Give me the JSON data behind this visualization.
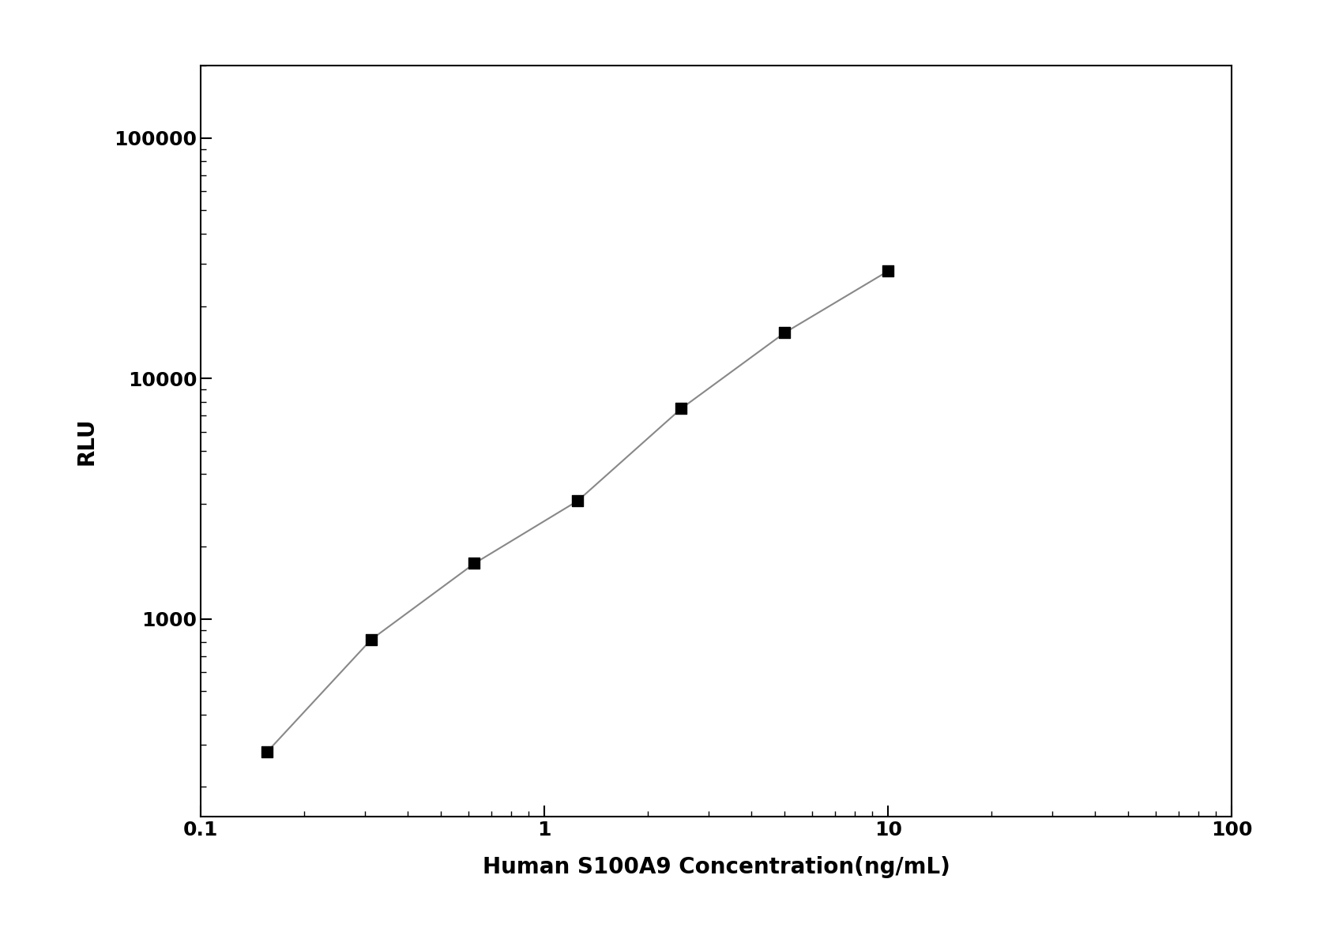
{
  "x": [
    0.156,
    0.313,
    0.625,
    1.25,
    2.5,
    5.0,
    10.0
  ],
  "y": [
    280,
    820,
    1700,
    3100,
    7500,
    15500,
    28000
  ],
  "xlabel": "Human S100A9 Concentration(ng/mL)",
  "ylabel": "RLU",
  "xlim": [
    0.1,
    100
  ],
  "ylim": [
    150,
    200000
  ],
  "line_color": "#888888",
  "marker_color": "#000000",
  "marker_size": 10,
  "line_width": 1.5,
  "background_color": "#ffffff",
  "xlabel_fontsize": 20,
  "ylabel_fontsize": 20,
  "tick_fontsize": 18,
  "xticks": [
    0.1,
    1,
    10,
    100
  ],
  "yticks": [
    1000,
    10000,
    100000
  ]
}
